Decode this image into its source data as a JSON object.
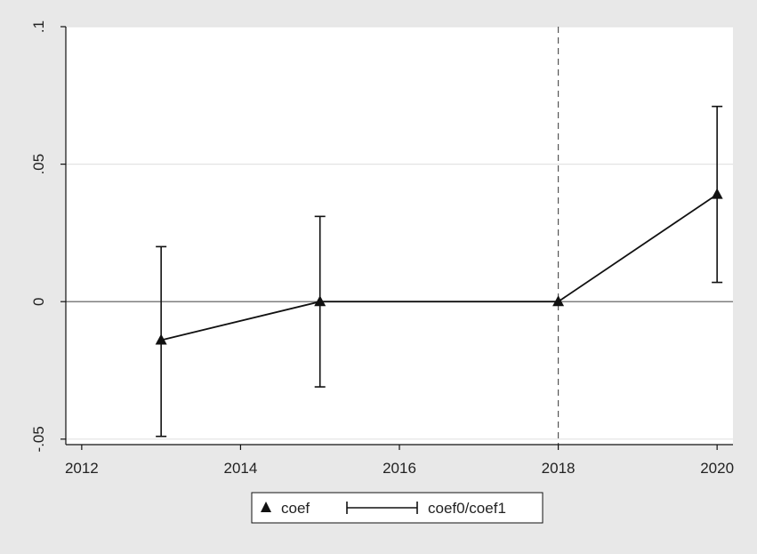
{
  "chart_data": {
    "type": "scatter",
    "title": "",
    "xlabel": "",
    "ylabel": "",
    "xlim": [
      2011.8,
      2020.2
    ],
    "ylim": [
      -0.052,
      0.1
    ],
    "x_ticks": [
      {
        "value": 2012,
        "label": "2012"
      },
      {
        "value": 2014,
        "label": "2014"
      },
      {
        "value": 2016,
        "label": "2016"
      },
      {
        "value": 2018,
        "label": "2018"
      },
      {
        "value": 2020,
        "label": "2020"
      }
    ],
    "y_ticks": [
      {
        "value": -0.05,
        "label": "-.05"
      },
      {
        "value": 0,
        "label": "0"
      },
      {
        "value": 0.05,
        "label": ".05"
      },
      {
        "value": 0.1,
        "label": ".1"
      }
    ],
    "grid": "horizontal",
    "reference_lines": {
      "y": 0,
      "x": 2018
    },
    "series": [
      {
        "name": "coef",
        "marker": "triangle",
        "connected": true,
        "x": [
          2013,
          2015,
          2018,
          2020
        ],
        "values": [
          -0.014,
          0.0,
          0.0,
          0.039
        ]
      },
      {
        "name": "coef0/coef1",
        "type": "error-bar",
        "x": [
          2013,
          2015,
          2018,
          2020
        ],
        "lower": [
          -0.049,
          -0.031,
          0.0,
          0.007
        ],
        "upper": [
          0.02,
          0.031,
          0.0,
          0.071
        ]
      }
    ],
    "legend": {
      "position": "bottom-center",
      "entries": [
        "coef",
        "coef0/coef1"
      ]
    },
    "colors": {
      "background": "#e8e8e8",
      "plot_area": "#ffffff",
      "grid": "#e3e3e3",
      "line": "#111111",
      "reference": "#555555"
    }
  }
}
